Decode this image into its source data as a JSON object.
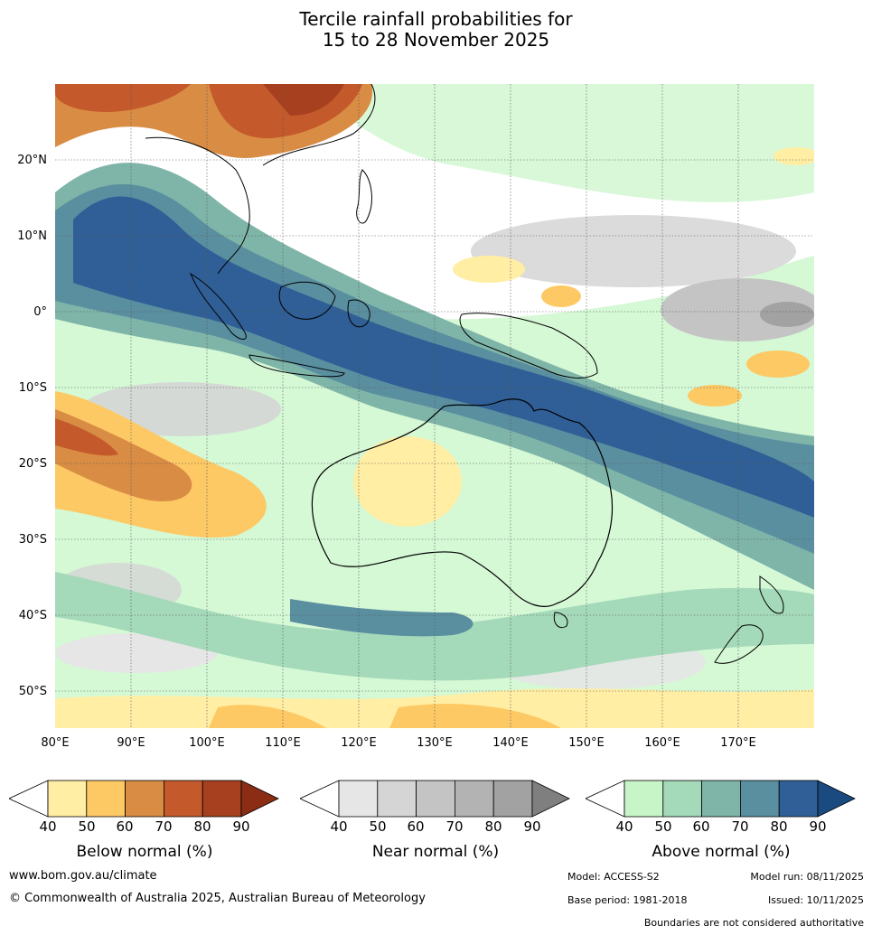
{
  "title": {
    "line1": "Tercile rainfall probabilities for",
    "line2": "15 to 28 November 2025"
  },
  "map": {
    "region": "Australia and surrounding region",
    "lat_labels": [
      "20°N",
      "10°N",
      "0°",
      "10°S",
      "20°S",
      "30°S",
      "40°S",
      "50°S"
    ],
    "lon_labels": [
      "80°E",
      "90°E",
      "100°E",
      "110°E",
      "120°E",
      "130°E",
      "140°E",
      "150°E",
      "160°E",
      "170°E"
    ]
  },
  "colorbars": [
    {
      "label": "Below normal (%)",
      "ticks": [
        "40",
        "50",
        "60",
        "70",
        "80",
        "90"
      ],
      "colors": [
        "#ffeea3",
        "#fdc964",
        "#d98c44",
        "#c45a2c",
        "#a6401f",
        "#8a2d14"
      ]
    },
    {
      "label": "Near normal (%)",
      "ticks": [
        "40",
        "50",
        "60",
        "70",
        "80",
        "90"
      ],
      "colors": [
        "#e6e6e6",
        "#d5d5d5",
        "#c4c4c4",
        "#b3b3b3",
        "#a2a2a2",
        "#7f7f7f"
      ]
    },
    {
      "label": "Above normal (%)",
      "ticks": [
        "40",
        "50",
        "60",
        "70",
        "80",
        "90"
      ],
      "colors": [
        "#c7f5c7",
        "#a4d9b9",
        "#7fb5a8",
        "#5a8fa0",
        "#2f5f96",
        "#1a4a80"
      ]
    }
  ],
  "footer": {
    "website": "www.bom.gov.au/climate",
    "copyright": "© Commonwealth of Australia 2025, Australian Bureau of Meteorology",
    "model": "Model: ACCESS-S2",
    "model_run": "Model run: 08/11/2025",
    "base_period": "Base period: 1981-2018",
    "issued": "Issued: 10/11/2025",
    "disclaimer": "Boundaries are not considered authoritative"
  }
}
